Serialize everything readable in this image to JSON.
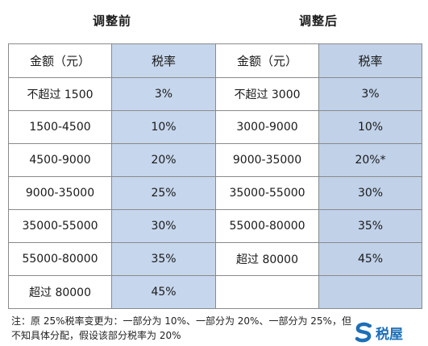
{
  "headings": {
    "before": "调整前",
    "after": "调整后"
  },
  "columns": {
    "amount": "金额（元）",
    "rate": "税率"
  },
  "before_rows": [
    {
      "amount": "不超过 1500",
      "rate": "3%"
    },
    {
      "amount": "1500-4500",
      "rate": "10%"
    },
    {
      "amount": "4500-9000",
      "rate": "20%"
    },
    {
      "amount": "9000-35000",
      "rate": "25%"
    },
    {
      "amount": "35000-55000",
      "rate": "30%"
    },
    {
      "amount": "55000-80000",
      "rate": "35%"
    },
    {
      "amount": "超过 80000",
      "rate": "45%"
    }
  ],
  "after_rows": [
    {
      "amount": "不超过 3000",
      "rate": "3%"
    },
    {
      "amount": "3000-9000",
      "rate": "10%"
    },
    {
      "amount": "9000-35000",
      "rate": "20%*"
    },
    {
      "amount": "35000-55000",
      "rate": "30%"
    },
    {
      "amount": "55000-80000",
      "rate": "35%"
    },
    {
      "amount": "超过 80000",
      "rate": "45%"
    },
    {
      "amount": "",
      "rate": ""
    }
  ],
  "note": {
    "line1": "注：原 25%税率变更为：一部分为 10%、一部分为 20%、一部分为 25%，但",
    "line2": "不知具体分配，假设该部分税率为 20%"
  },
  "logo": {
    "text": "税屋",
    "icon": "s-logo-icon",
    "color": "#1b6fb8"
  },
  "colors": {
    "rate_before_bg": "#c6d6ec",
    "rate_after_bg": "#c0d1e8",
    "border": "#8a8a8a"
  }
}
